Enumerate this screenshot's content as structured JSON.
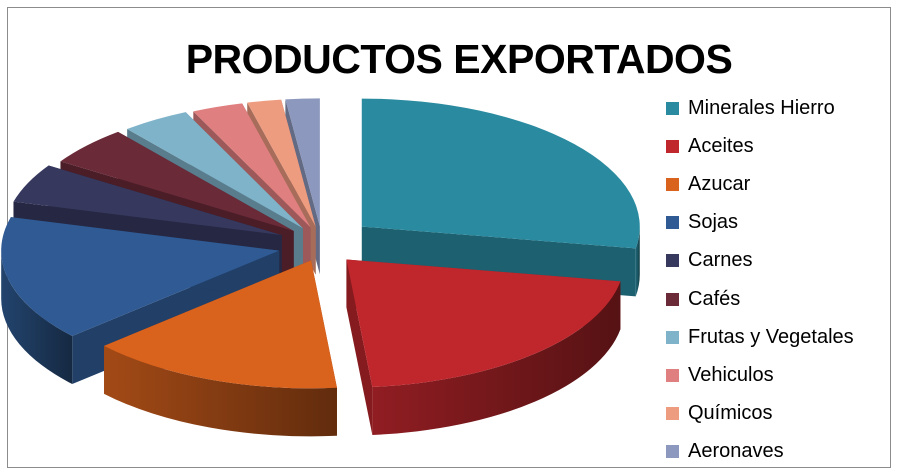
{
  "chart_data": {
    "type": "pie",
    "title": "PRODUCTOS EXPORTADOS",
    "legend_position": "right",
    "categories": [
      "Minerales Hierro",
      "Aceites",
      "Azucar",
      "Sojas",
      "Carnes",
      "Cafés",
      "Frutas y Vegetales",
      "Vehiculos",
      "Químicos",
      "Aeronaves"
    ],
    "values": [
      28,
      21,
      15,
      16,
      5,
      5,
      4,
      3,
      2,
      2
    ],
    "colors": [
      "#2a8ba0",
      "#c0272d",
      "#d9621d",
      "#2f5a93",
      "#36385e",
      "#6a2a38",
      "#7fb3c9",
      "#e07f7f",
      "#ee9c80",
      "#8c98bd"
    ],
    "exploded": true,
    "style": "3d"
  }
}
